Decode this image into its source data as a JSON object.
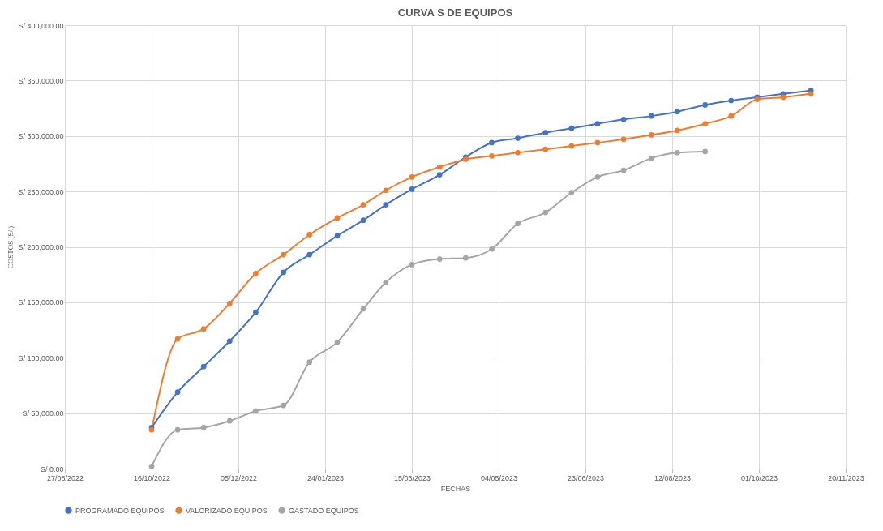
{
  "chart_data": {
    "type": "line",
    "title": "CURVA S DE EQUIPOS",
    "xlabel": "FECHAS",
    "ylabel": "COSTOS (S/.)",
    "x": [
      "2022-10-16",
      "2022-10-31",
      "2022-11-15",
      "2022-11-30",
      "2022-12-15",
      "2022-12-31",
      "2023-01-15",
      "2023-01-31",
      "2023-02-15",
      "2023-02-28",
      "2023-03-15",
      "2023-03-31",
      "2023-04-15",
      "2023-04-30",
      "2023-05-15",
      "2023-05-31",
      "2023-06-15",
      "2023-06-30",
      "2023-07-15",
      "2023-07-31",
      "2023-08-15",
      "2023-08-31",
      "2023-09-15",
      "2023-09-30",
      "2023-10-15",
      "2023-10-31"
    ],
    "series": [
      {
        "name": "PROGRAMADO EQUIPOS",
        "color": "#4472c4",
        "values": [
          37000,
          69000,
          92000,
          115000,
          141000,
          177000,
          193000,
          210000,
          224000,
          238000,
          252000,
          265000,
          281000,
          294000,
          298000,
          303000,
          307000,
          311000,
          315000,
          318000,
          322000,
          328000,
          332000,
          335000,
          338000,
          341000
        ]
      },
      {
        "name": "VALORIZADO EQUIPOS",
        "color": "#ed7d31",
        "values": [
          35000,
          117000,
          126000,
          149000,
          176000,
          193000,
          211000,
          226000,
          238000,
          251000,
          263000,
          272000,
          279000,
          282000,
          285000,
          288000,
          291000,
          294000,
          297000,
          301000,
          305000,
          311000,
          318000,
          333000,
          335000,
          338000
        ]
      },
      {
        "name": "GASTADO EQUIPOS",
        "color": "#a5a5a5",
        "values": [
          2000,
          35000,
          37000,
          43000,
          52000,
          57000,
          96000,
          114000,
          144000,
          168000,
          184000,
          189000,
          190000,
          198000,
          221000,
          231000,
          249000,
          263000,
          269000,
          280000,
          285000,
          286000,
          null,
          null,
          null,
          null
        ]
      }
    ],
    "xlim": [
      "2022-08-27",
      "2023-11-20"
    ],
    "xticks": [
      {
        "value": "2022-08-27",
        "label": "27/08/2022"
      },
      {
        "value": "2022-10-16",
        "label": "16/10/2022"
      },
      {
        "value": "2022-12-05",
        "label": "05/12/2022"
      },
      {
        "value": "2023-01-24",
        "label": "24/01/2023"
      },
      {
        "value": "2023-03-15",
        "label": "15/03/2023"
      },
      {
        "value": "2023-05-04",
        "label": "04/05/2023"
      },
      {
        "value": "2023-06-23",
        "label": "23/06/2023"
      },
      {
        "value": "2023-08-12",
        "label": "12/08/2023"
      },
      {
        "value": "2023-10-01",
        "label": "01/10/2023"
      },
      {
        "value": "2023-11-20",
        "label": "20/11/2023"
      }
    ],
    "ylim": [
      0,
      400000
    ],
    "yticks": [
      {
        "value": 0,
        "label": "S/ 0.00"
      },
      {
        "value": 50000,
        "label": "S/ 50,000.00"
      },
      {
        "value": 100000,
        "label": "S/ 100,000.00"
      },
      {
        "value": 150000,
        "label": "S/ 150,000.00"
      },
      {
        "value": 200000,
        "label": "S/ 200,000.00"
      },
      {
        "value": 250000,
        "label": "S/ 250,000.00"
      },
      {
        "value": 300000,
        "label": "S/ 300,000.00"
      },
      {
        "value": 350000,
        "label": "S/ 350,000.00"
      },
      {
        "value": 400000,
        "label": "S/ 400,000.00"
      }
    ],
    "grid": true,
    "legend": "bottom",
    "marker": "circle",
    "line_style": "solid"
  }
}
